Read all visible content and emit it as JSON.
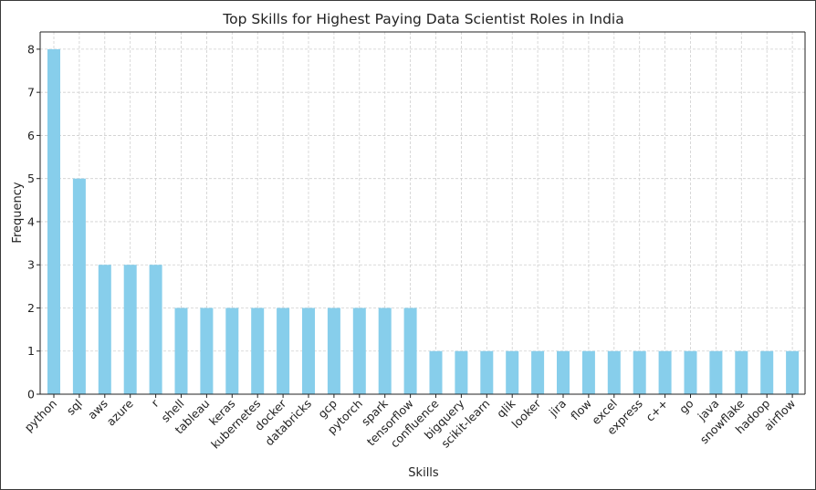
{
  "chart_data": {
    "type": "bar",
    "title": "Top Skills for Highest Paying Data Scientist Roles in India",
    "xlabel": "Skills",
    "ylabel": "Frequency",
    "categories": [
      "python",
      "sql",
      "aws",
      "azure",
      "r",
      "shell",
      "tableau",
      "keras",
      "kubernetes",
      "docker",
      "databricks",
      "gcp",
      "pytorch",
      "spark",
      "tensorflow",
      "confluence",
      "bigquery",
      "scikit-learn",
      "qlik",
      "looker",
      "jira",
      "flow",
      "excel",
      "express",
      "c++",
      "go",
      "java",
      "snowflake",
      "hadoop",
      "airflow"
    ],
    "values": [
      8,
      5,
      3,
      3,
      3,
      2,
      2,
      2,
      2,
      2,
      2,
      2,
      2,
      2,
      2,
      1,
      1,
      1,
      1,
      1,
      1,
      1,
      1,
      1,
      1,
      1,
      1,
      1,
      1,
      1
    ],
    "ylim": [
      0,
      8.4
    ],
    "yticks": [
      0,
      1,
      2,
      3,
      4,
      5,
      6,
      7,
      8
    ],
    "grid": true,
    "bar_color": "#87ceeb"
  }
}
